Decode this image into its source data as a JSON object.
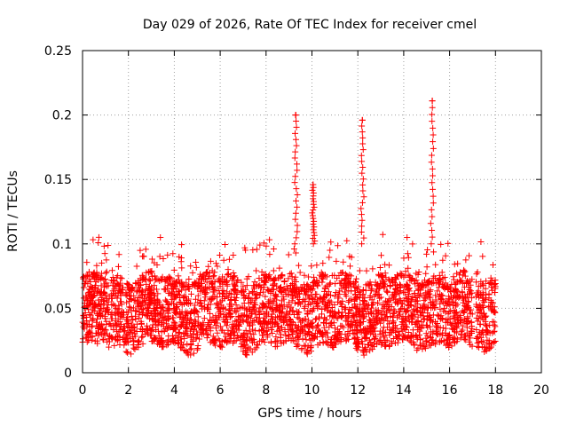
{
  "chart_data": {
    "type": "scatter",
    "title": "Day 029 of 2026, Rate Of TEC Index for receiver cmel",
    "xlabel": "GPS time / hours",
    "ylabel": "ROTI / TECUs",
    "xlim": [
      0,
      20
    ],
    "ylim": [
      0,
      0.25
    ],
    "x_ticks": [
      "0",
      "2",
      "4",
      "6",
      "8",
      "10",
      "12",
      "14",
      "16",
      "18",
      "20"
    ],
    "y_ticks": [
      "0",
      "0.05",
      "0.1",
      "0.15",
      "0.2",
      "0.25"
    ],
    "grid": true,
    "marker": "+",
    "point_color": "#ff0000",
    "data_extent_hours": [
      0,
      18
    ],
    "typical_range": [
      0.01,
      0.1
    ],
    "peaks": [
      {
        "x": 9.3,
        "y": 0.2
      },
      {
        "x": 12.2,
        "y": 0.196
      },
      {
        "x": 15.25,
        "y": 0.211
      },
      {
        "x": 10.05,
        "y": 0.146
      }
    ],
    "gaps": [
      [
        17.0,
        17.15
      ]
    ]
  }
}
